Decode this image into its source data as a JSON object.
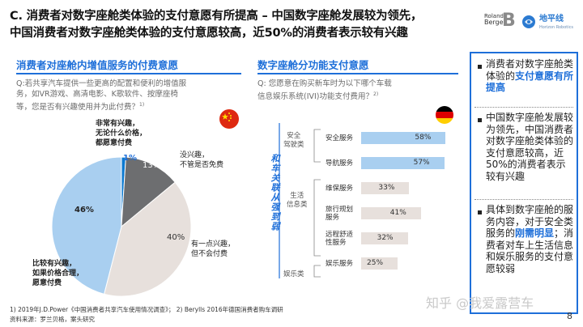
{
  "title": {
    "line1": "C. 消费者对数字座舱类体验的支付意愿有所提高 – 中国数字座舱发展较为领先，",
    "line2": "中国消费者对数字座舱类体验的支付意愿较高，近50%的消费者表示较有兴趣"
  },
  "logos": {
    "roland_line1": "Roland",
    "roland_line2": "Berger",
    "roland_mark": "B",
    "dpx_name": "地平线",
    "dpx_sub": "Horizon Robotics"
  },
  "left": {
    "section_title": "消费者对座舱内增值服务的付费意愿",
    "question_lines": [
      "Q:若共享汽车提供一些更高的配置和便利的增值服",
      "务，如VR游戏、高清电影、K歌软件、按摩座椅",
      "等，您是否有兴趣使用并为此付费？"
    ],
    "question_sup": "1)",
    "flag": "china-flag"
  },
  "middle": {
    "section_title": "数字座舱分功能支付意愿",
    "question_lines": [
      "Q: 您愿意在购买新车时为以下哪个车载",
      "信息娱乐系统(IVI)功能支付费用？"
    ],
    "question_sup": "2)",
    "flag": "germany-flag",
    "vertical_caption": "和车关联从强到弱",
    "categories": [
      {
        "line1": "安全",
        "line2": "驾驶类"
      },
      {
        "line1": "生活",
        "line2": "信息类"
      },
      {
        "line1": "娱乐类",
        "line2": ""
      }
    ]
  },
  "chart_data": [
    {
      "type": "pie",
      "slices": [
        {
          "value": 1,
          "pct_text": "1%",
          "label_lines": [
            "非常有兴趣，",
            "无论什么价格，",
            "都愿意付费"
          ],
          "color": "#0b79d0"
        },
        {
          "value": 13,
          "pct_text": "13%",
          "label_lines": [
            "没兴趣，",
            "不管是否免费"
          ],
          "color": "#6d6e70"
        },
        {
          "value": 40,
          "pct_text": "40%",
          "label_lines": [
            "有一点兴趣，",
            "但不会付费"
          ],
          "color": "#e7e0dc"
        },
        {
          "value": 46,
          "pct_text": "46%",
          "label_lines": [
            "比较有兴趣，",
            "如果价格合理，",
            "愿意付费"
          ],
          "color": "#a9cff0"
        }
      ]
    },
    {
      "type": "bar",
      "orientation": "horizontal",
      "xlim": [
        0,
        100
      ],
      "bars": [
        {
          "label_lines": [
            "安全服务"
          ],
          "value": 58,
          "value_text": "58%",
          "color": "#a9cff0"
        },
        {
          "label_lines": [
            "导航服务"
          ],
          "value": 57,
          "value_text": "57%",
          "color": "#a9cff0"
        },
        {
          "label_lines": [
            "维保服务"
          ],
          "value": 33,
          "value_text": "33%",
          "color": "#e7e0dc"
        },
        {
          "label_lines": [
            "旅行规划",
            "服务"
          ],
          "value": 41,
          "value_text": "41%",
          "color": "#e7e0dc"
        },
        {
          "label_lines": [
            "远程舒适",
            "性服务"
          ],
          "value": 32,
          "value_text": "32%",
          "color": "#e7e0dc"
        },
        {
          "label_lines": [
            "娱乐服务"
          ],
          "value": 25,
          "value_text": "25%",
          "color": "#e7e0dc"
        }
      ]
    }
  ],
  "takeaways": {
    "b1_pre": "消费者对数字座舱类体验的",
    "b1_hl": "支付意愿有所提高",
    "b2": "中国数字座舱发展较为领先，中国消费者对数字座舱类体验的支付意愿较高，近50%的消费者表示较有兴趣",
    "b3_pre": "具体到数字座舱的服务内容，对于安全类服务的",
    "b3_hl": "刚需明显",
    "b3_post": "；消费者对车上生活信息和娱乐服务的支付意愿较弱"
  },
  "footnotes": {
    "line1": "1) 2019年J.D.Power《中国消费者共享汽车使用情况调查》； 2) Berylls 2016年德国消费者购车调研",
    "line2": "资料来源：罗兰贝格，案头研究"
  },
  "watermark": "知乎 @我爱露营车",
  "page_number": "8",
  "colors": {
    "accent": "#1e6fd9",
    "dark_slice": "#6d6e70",
    "light_blue": "#a9cff0",
    "beige": "#e7e0dc"
  }
}
